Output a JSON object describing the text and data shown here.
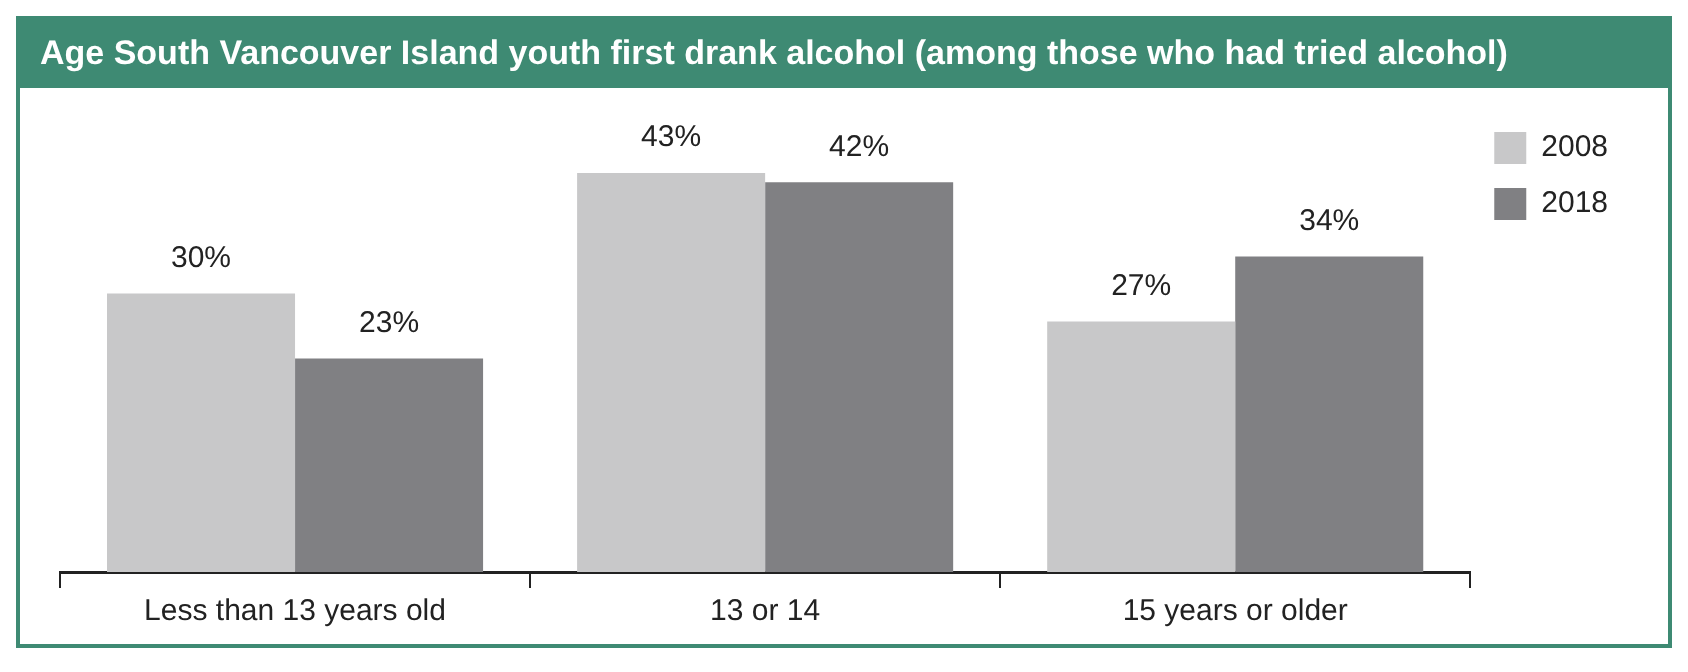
{
  "chart_data": {
    "type": "bar",
    "title": "Age South Vancouver Island youth first drank alcohol (among those who had tried alcohol)",
    "categories": [
      "Less than 13 years old",
      "13 or 14",
      "15 years or older"
    ],
    "series": [
      {
        "name": "2008",
        "color": "#c8c8c9",
        "values": [
          30,
          43,
          27
        ],
        "value_labels": [
          "30%",
          "43%",
          "27%"
        ]
      },
      {
        "name": "2018",
        "color": "#808083",
        "values": [
          23,
          42,
          34
        ],
        "value_labels": [
          "23%",
          "42%",
          "34%"
        ]
      }
    ],
    "tick_labels": "x",
    "grid": false,
    "legend": "right"
  }
}
